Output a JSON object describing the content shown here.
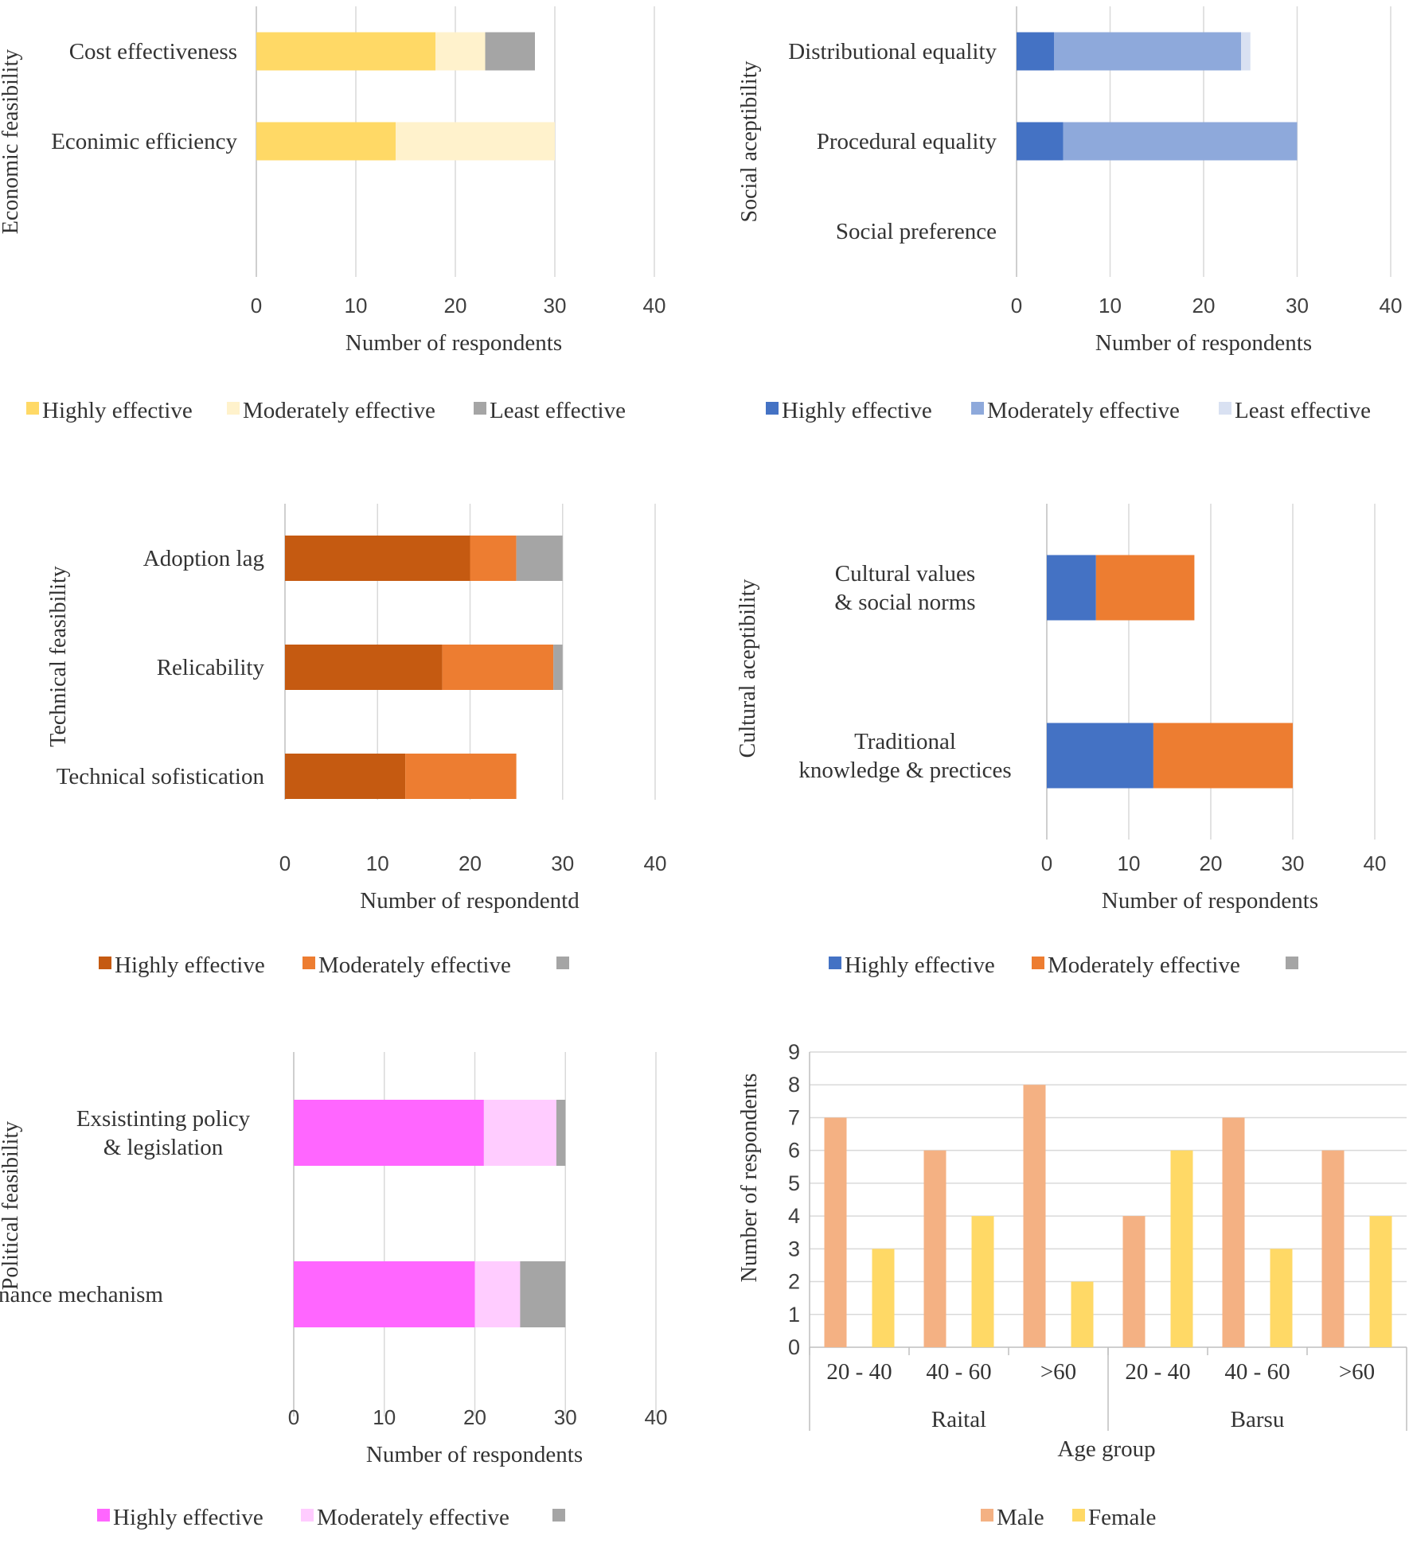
{
  "chart_data": [
    {
      "type": "bar",
      "orientation": "horizontal",
      "stacked": true,
      "title": "",
      "ylabel": "Economic feasibility",
      "xlabel": "Number of respondents",
      "categories": [
        "Cost effectiveness",
        "Econimic efficiency",
        ""
      ],
      "series": [
        {
          "name": "Highly effective",
          "color": "#FFD966",
          "values": [
            18,
            14,
            0
          ]
        },
        {
          "name": "Moderately effective",
          "color": "#FFF2CC",
          "values": [
            5,
            16,
            0
          ]
        },
        {
          "name": "Least effective",
          "color": "#A5A5A5",
          "values": [
            5,
            0,
            0
          ]
        }
      ],
      "xlim": [
        0,
        40
      ],
      "xticks": [
        "0",
        "10",
        "20",
        "30",
        "40"
      ],
      "legend": "bottom"
    },
    {
      "type": "bar",
      "orientation": "horizontal",
      "stacked": true,
      "title": "",
      "ylabel": "Social  aceptibility",
      "xlabel": "Number of respondents",
      "categories": [
        "Distributional equality",
        "Procedural equality",
        "Social preference"
      ],
      "series": [
        {
          "name": "Highly effective",
          "color": "#4472C4",
          "values": [
            4,
            5,
            0
          ]
        },
        {
          "name": "Moderately effective",
          "color": "#8EA9DB",
          "values": [
            20,
            25,
            0
          ]
        },
        {
          "name": "Least effective",
          "color": "#D9E1F2",
          "values": [
            1,
            0,
            0
          ]
        }
      ],
      "xlim": [
        0,
        40
      ],
      "xticks": [
        "0",
        "10",
        "20",
        "30",
        "40"
      ],
      "legend": "bottom"
    },
    {
      "type": "bar",
      "orientation": "horizontal",
      "stacked": true,
      "title": "",
      "ylabel": "Technical feasibility",
      "xlabel": "Number of respondentd",
      "categories": [
        "Adoption lag",
        "Relicability",
        "Technical sofistication"
      ],
      "series": [
        {
          "name": "Highly effective",
          "color": "#C55A11",
          "values": [
            20,
            17,
            13
          ]
        },
        {
          "name": "Moderately effective",
          "color": "#ED7D31",
          "values": [
            5,
            12,
            12
          ]
        },
        {
          "name": "",
          "color": "#A5A5A5",
          "values": [
            5,
            1,
            0
          ]
        }
      ],
      "xlim": [
        0,
        40
      ],
      "xticks": [
        "0",
        "10",
        "20",
        "30",
        "40"
      ],
      "legend": "bottom"
    },
    {
      "type": "bar",
      "orientation": "horizontal",
      "stacked": true,
      "title": "",
      "ylabel": "Cultural  aceptibility",
      "xlabel": "Number of respondents",
      "categories": [
        "Cultural values & social norms",
        "Traditional knowledge & prectices"
      ],
      "series": [
        {
          "name": "Highly effective",
          "color": "#4472C4",
          "values": [
            6,
            13
          ]
        },
        {
          "name": "Moderately effective",
          "color": "#ED7D31",
          "values": [
            12,
            17
          ]
        },
        {
          "name": "",
          "color": "#A5A5A5",
          "values": [
            0,
            0
          ]
        }
      ],
      "xlim": [
        0,
        40
      ],
      "xticks": [
        "0",
        "10",
        "20",
        "30",
        "40"
      ],
      "legend": "bottom"
    },
    {
      "type": "bar",
      "orientation": "horizontal",
      "stacked": true,
      "title": "",
      "ylabel": "Political  feasibility",
      "xlabel": "Number of respondents",
      "categories": [
        "Exsistinting policy & legislation",
        "Governance mechanism"
      ],
      "series": [
        {
          "name": "Highly effective",
          "color": "#FF66FF",
          "values": [
            21,
            20
          ]
        },
        {
          "name": "Moderately effective",
          "color": "#FFCCFF",
          "values": [
            8,
            5
          ]
        },
        {
          "name": "",
          "color": "#A5A5A5",
          "values": [
            1,
            5
          ]
        }
      ],
      "xlim": [
        0,
        40
      ],
      "xticks": [
        "0",
        "10",
        "20",
        "30",
        "40"
      ],
      "legend": "bottom"
    },
    {
      "type": "bar",
      "orientation": "vertical",
      "stacked": false,
      "title": "",
      "ylabel": "Number of respondents",
      "xlabel": "Age group",
      "groups": [
        "Raital",
        "Barsu"
      ],
      "categories": [
        "20 - 40",
        "40 - 60",
        ">60",
        "20 - 40",
        "40 - 60",
        ">60"
      ],
      "series": [
        {
          "name": "Male",
          "color": "#F4B183",
          "values": [
            7,
            6,
            8,
            4,
            7,
            6
          ]
        },
        {
          "name": "Female",
          "color": "#FFD966",
          "values": [
            3,
            4,
            2,
            6,
            3,
            4
          ]
        }
      ],
      "ylim": [
        0,
        9
      ],
      "yticks": [
        "0",
        "1",
        "2",
        "3",
        "4",
        "5",
        "6",
        "7",
        "8",
        "9"
      ],
      "legend": "bottom"
    }
  ]
}
